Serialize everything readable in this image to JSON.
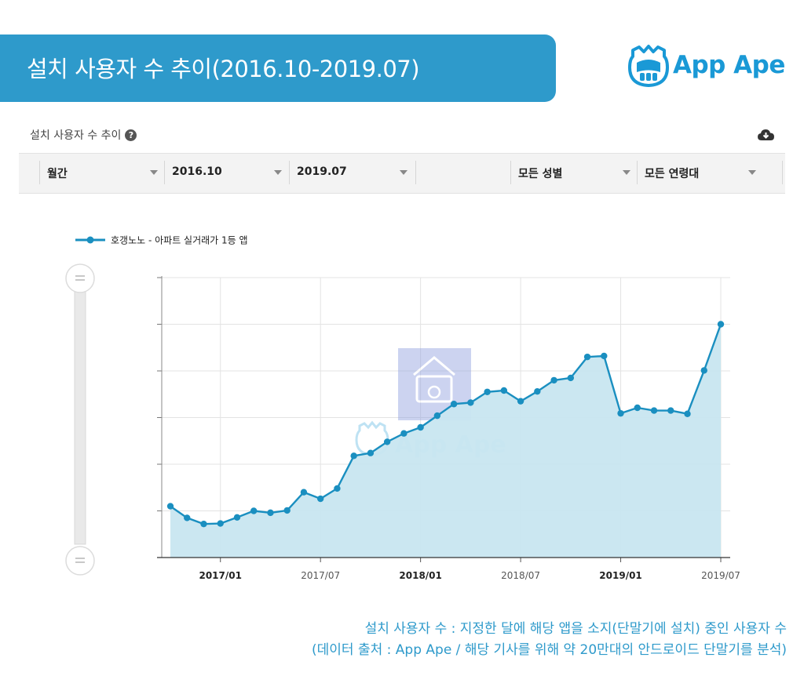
{
  "header": {
    "title": "설치 사용자 수 추이(2016.10-2019.07)",
    "logo_text": "App Ape",
    "accent_color": "#2e9acb"
  },
  "panel": {
    "title": "설치 사용자 수 추이",
    "help_icon": "question-circle-icon",
    "download_icon": "cloud-download-icon"
  },
  "filters": {
    "period": "월간",
    "start": "2016.10",
    "end": "2019.07",
    "gender": "모든 성별",
    "age": "모든 연령대"
  },
  "footnote": {
    "line1": "설치 사용자 수 : 지정한 달에 해당 앱을 소지(단말기에 설치) 중인 사용자 수",
    "line2": "(데이터 출처 : App Ape / 해당 기사를 위해 약 20만대의 안드로이드 단말기를 분석)"
  },
  "chart_data": {
    "type": "area",
    "title": "",
    "xlabel": "",
    "ylabel": "",
    "series": [
      {
        "name": "호갱노노 - 아파트 실거래가 1등 앱",
        "color": "#1a8fc0",
        "fill": "#c8e6f0",
        "values": [
          11,
          8.5,
          7.2,
          7.3,
          8.6,
          10,
          9.6,
          10.1,
          14,
          12.6,
          14.8,
          21.8,
          22.4,
          24.8,
          26.6,
          27.9,
          30.4,
          32.9,
          33.2,
          35.5,
          35.8,
          33.5,
          35.6,
          38,
          38.5,
          43,
          43.2,
          30.9,
          32.1,
          31.5,
          31.5,
          30.8,
          40.1,
          50
        ]
      }
    ],
    "x": [
      "2016/10",
      "2016/11",
      "2016/12",
      "2017/01",
      "2017/02",
      "2017/03",
      "2017/04",
      "2017/05",
      "2017/06",
      "2017/07",
      "2017/08",
      "2017/09",
      "2017/10",
      "2017/11",
      "2017/12",
      "2018/01",
      "2018/02",
      "2018/03",
      "2018/04",
      "2018/05",
      "2018/06",
      "2018/07",
      "2018/08",
      "2018/09",
      "2018/10",
      "2018/11",
      "2018/12",
      "2019/01",
      "2019/02",
      "2019/03",
      "2019/04",
      "2019/05",
      "2019/06",
      "2019/07"
    ],
    "x_tick_labels": [
      {
        "index": 3,
        "label": "2017/01",
        "bold": true
      },
      {
        "index": 9,
        "label": "2017/07",
        "bold": false
      },
      {
        "index": 15,
        "label": "2018/01",
        "bold": true
      },
      {
        "index": 21,
        "label": "2018/07",
        "bold": false
      },
      {
        "index": 27,
        "label": "2019/01",
        "bold": true
      },
      {
        "index": 33,
        "label": "2019/07",
        "bold": false
      }
    ],
    "ylim": [
      0,
      60
    ],
    "y_gridlines": [
      10,
      20,
      30,
      40,
      50,
      60
    ],
    "grid": true,
    "legend": "top-left",
    "y_tick_labels_shown": false
  }
}
